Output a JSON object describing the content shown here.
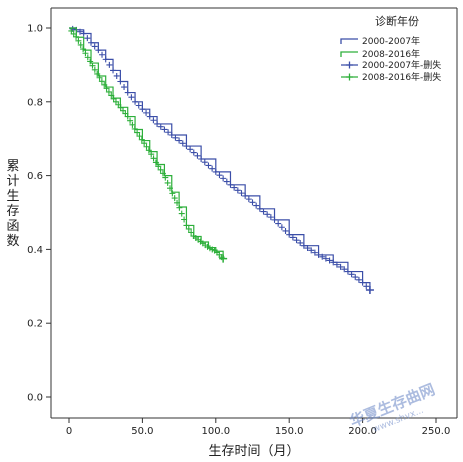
{
  "chart_data": {
    "type": "line",
    "title": "",
    "xlabel": "生存时间（月）",
    "ylabel": "累计生存函数",
    "xlim": [
      0,
      250
    ],
    "ylim": [
      0,
      1.0
    ],
    "x_ticks": [
      "0",
      "50.0",
      "100.0",
      "150.0",
      "200.0",
      "250.0"
    ],
    "y_ticks": [
      "0.0",
      "0.2",
      "0.4",
      "0.6",
      "0.8",
      "1.0"
    ],
    "grid": false,
    "legend": {
      "title": "诊断年份",
      "placement": "top-right",
      "entries": [
        "2000-2007年",
        "2008-2016年",
        "2000-2007年-删失",
        "2008-2016年-删失"
      ]
    },
    "series": [
      {
        "name": "2000-2007年",
        "color": "#3b4ea8",
        "x": [
          0,
          5,
          10,
          15,
          20,
          25,
          30,
          35,
          40,
          45,
          50,
          55,
          60,
          70,
          80,
          90,
          100,
          110,
          120,
          130,
          140,
          150,
          160,
          170,
          180,
          190,
          200,
          205
        ],
        "y": [
          1.0,
          0.995,
          0.985,
          0.96,
          0.94,
          0.915,
          0.885,
          0.855,
          0.825,
          0.8,
          0.78,
          0.76,
          0.74,
          0.71,
          0.68,
          0.645,
          0.61,
          0.575,
          0.545,
          0.51,
          0.48,
          0.44,
          0.41,
          0.385,
          0.365,
          0.34,
          0.31,
          0.29
        ]
      },
      {
        "name": "2008-2016年",
        "color": "#2daf3a",
        "x": [
          0,
          5,
          10,
          15,
          20,
          25,
          30,
          35,
          40,
          45,
          50,
          55,
          60,
          65,
          70,
          75,
          80,
          85,
          90,
          95,
          100,
          105
        ],
        "y": [
          1.0,
          0.975,
          0.94,
          0.905,
          0.87,
          0.84,
          0.81,
          0.785,
          0.76,
          0.725,
          0.695,
          0.665,
          0.63,
          0.6,
          0.555,
          0.515,
          0.465,
          0.435,
          0.42,
          0.405,
          0.395,
          0.375
        ]
      }
    ]
  },
  "watermark": {
    "text": "华夏生存曲网",
    "sub": "www.shvx..."
  }
}
